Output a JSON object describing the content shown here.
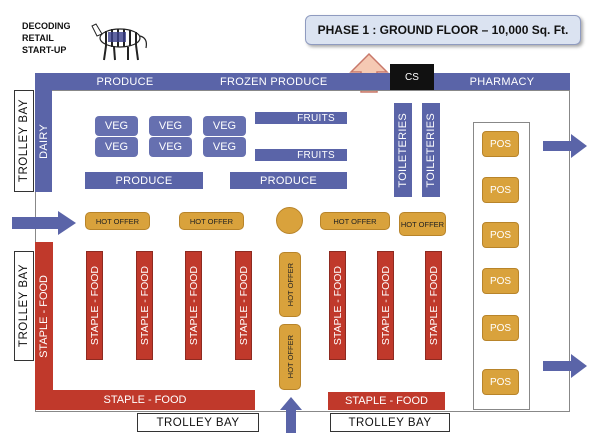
{
  "header": {
    "brand_lines": [
      "DECODING",
      "RETAIL",
      "START-UP"
    ],
    "phase_title": "PHASE 1 : GROUND FLOOR – 10,000 Sq. Ft."
  },
  "top_bar": {
    "produce": "PRODUCE",
    "frozen": "FROZEN PRODUCE",
    "cs": "CS",
    "pharmacy": "PHARMACY"
  },
  "dairy": "DAIRY",
  "veg": [
    "VEG",
    "VEG",
    "VEG",
    "VEG",
    "VEG",
    "VEG"
  ],
  "fruits": [
    "FRUITS",
    "FRUITS"
  ],
  "produce_shelves": [
    "PRODUCE",
    "PRODUCE"
  ],
  "toiletries": [
    "TOILETERIES",
    "TOILETERIES"
  ],
  "hot_offers_h": [
    "HOT OFFER",
    "HOT OFFER",
    "HOT OFFER",
    "HOT OFFER"
  ],
  "hot_offers_v": [
    "HOT OFFER",
    "HOT OFFER"
  ],
  "staple": {
    "aisle_label": "STAPLE - FOOD",
    "bottom_left": "STAPLE - FOOD",
    "bottom_right": "STAPLE - FOOD",
    "left_side": "STAPLE - FOOD"
  },
  "pos": [
    "POS",
    "POS",
    "POS",
    "POS",
    "POS",
    "POS"
  ],
  "trolley_bays": {
    "top_left": "TROLLEY BAY",
    "left": "TROLLEY BAY",
    "bottom_1": "TROLLEY BAY",
    "bottom_2": "TROLLEY BAY"
  },
  "colors": {
    "shelf_blue": "#5a64a8",
    "staple_red": "#c0392b",
    "offer_orange": "#d9a23c",
    "phase_box": "#dbe3f1"
  }
}
